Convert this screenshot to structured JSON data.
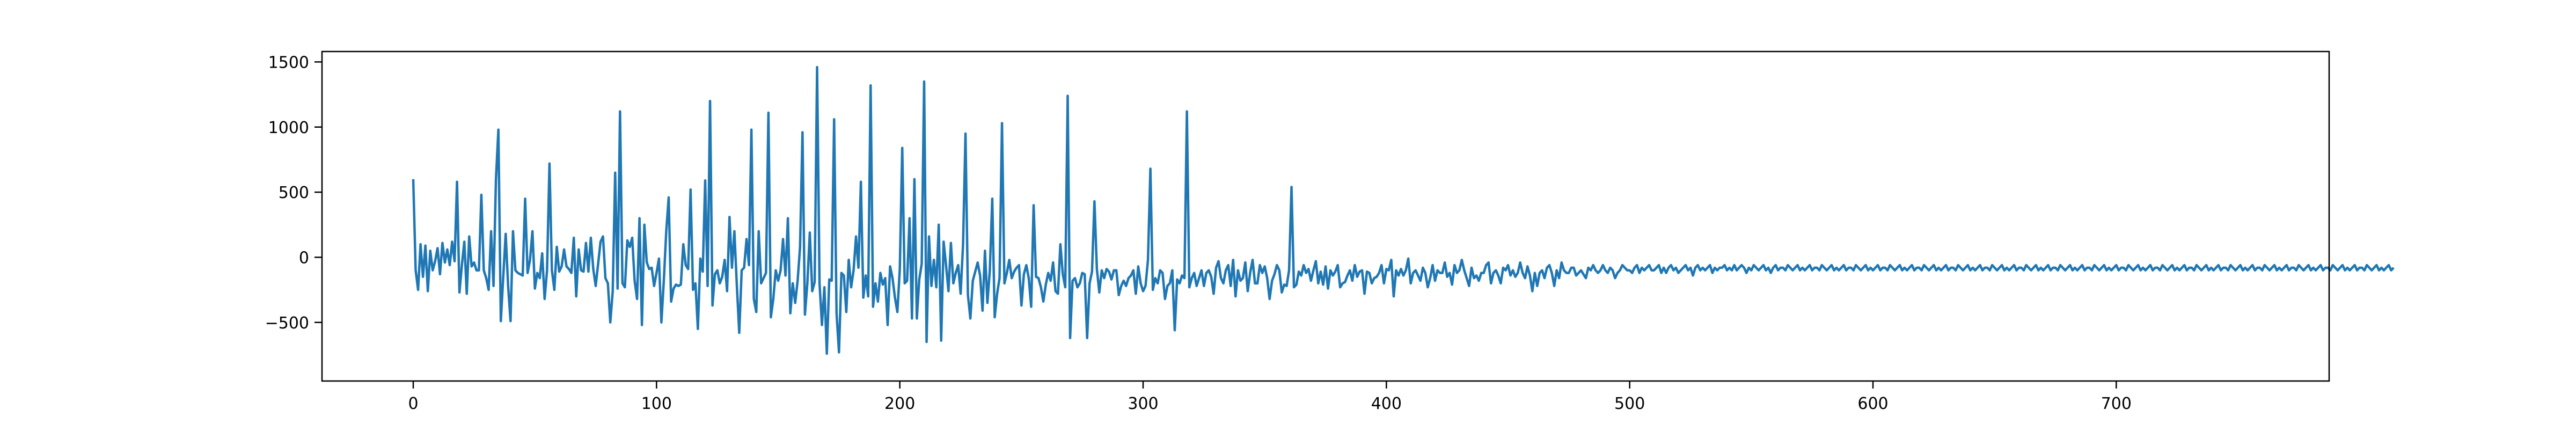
{
  "chart_data": {
    "type": "line",
    "title": "",
    "xlabel": "",
    "ylabel": "",
    "xlim": [
      -37.5,
      787.5
    ],
    "ylim": [
      -950,
      1580
    ],
    "grid": false,
    "legend": "none",
    "x_ticks": [
      {
        "value": 0,
        "label": "0"
      },
      {
        "value": 100,
        "label": "100"
      },
      {
        "value": 200,
        "label": "200"
      },
      {
        "value": 300,
        "label": "300"
      },
      {
        "value": 400,
        "label": "400"
      },
      {
        "value": 500,
        "label": "500"
      },
      {
        "value": 600,
        "label": "600"
      },
      {
        "value": 700,
        "label": "700"
      }
    ],
    "y_ticks": [
      {
        "value": -500,
        "label": "−500"
      },
      {
        "value": 0,
        "label": "0"
      },
      {
        "value": 500,
        "label": "500"
      },
      {
        "value": 1000,
        "label": "1000"
      },
      {
        "value": 1500,
        "label": "1500"
      }
    ],
    "series": [
      {
        "color": "#1f77b4",
        "x_start": 0,
        "x_step": 1,
        "y": [
          600,
          -100,
          -250,
          100,
          -150,
          90,
          -260,
          50,
          -100,
          -30,
          70,
          -130,
          110,
          -40,
          60,
          -60,
          120,
          -30,
          580,
          -270,
          -60,
          120,
          -280,
          160,
          -70,
          -40,
          -100,
          -100,
          480,
          -100,
          -160,
          -250,
          200,
          -220,
          600,
          980,
          -490,
          -150,
          180,
          -220,
          -490,
          200,
          -100,
          -120,
          -130,
          -140,
          450,
          -120,
          -20,
          200,
          -240,
          -120,
          -160,
          30,
          -320,
          -100,
          720,
          -100,
          -250,
          80,
          -110,
          -70,
          60,
          -70,
          -90,
          -120,
          150,
          -300,
          60,
          -100,
          -110,
          110,
          -110,
          150,
          -90,
          -220,
          -50,
          120,
          160,
          -160,
          -200,
          -500,
          -260,
          650,
          -240,
          1120,
          -200,
          -230,
          130,
          80,
          150,
          -180,
          -320,
          300,
          -520,
          250,
          -40,
          -90,
          -80,
          -220,
          -120,
          -10,
          -500,
          -180,
          200,
          460,
          -340,
          -240,
          -210,
          -220,
          -210,
          100,
          -60,
          -90,
          520,
          -250,
          -200,
          -550,
          -10,
          -110,
          590,
          -220,
          1200,
          -370,
          -130,
          -100,
          -200,
          -150,
          -20,
          -260,
          310,
          -80,
          200,
          -210,
          -580,
          -100,
          -80,
          140,
          -60,
          980,
          -320,
          -420,
          200,
          -200,
          -160,
          -120,
          1110,
          -460,
          -320,
          -100,
          -180,
          -100,
          140,
          -140,
          300,
          -430,
          -200,
          -350,
          -180,
          80,
          960,
          -440,
          -200,
          190,
          -260,
          -190,
          1460,
          -200,
          -520,
          -230,
          -740,
          -170,
          -180,
          1060,
          -430,
          -730,
          -120,
          -140,
          -420,
          -20,
          -230,
          -100,
          160,
          -80,
          580,
          -310,
          -140,
          -300,
          1320,
          -380,
          -200,
          -340,
          -120,
          -210,
          -160,
          -520,
          -70,
          -160,
          -310,
          -420,
          -90,
          840,
          -200,
          -180,
          300,
          -470,
          600,
          -470,
          -170,
          -50,
          1350,
          -650,
          160,
          -220,
          -20,
          -230,
          250,
          -640,
          120,
          -60,
          -260,
          110,
          -200,
          -120,
          -60,
          -280,
          100,
          950,
          -290,
          -470,
          -180,
          -110,
          -40,
          -140,
          -410,
          50,
          -350,
          -100,
          450,
          -460,
          -280,
          -160,
          1030,
          -200,
          -120,
          -20,
          -160,
          -110,
          -80,
          -60,
          -370,
          -130,
          -60,
          -160,
          -380,
          400,
          -150,
          -160,
          -230,
          -340,
          -210,
          -120,
          -180,
          -40,
          -260,
          -280,
          100,
          -130,
          -230,
          1240,
          -620,
          -180,
          -160,
          -230,
          -200,
          -120,
          -130,
          -620,
          -200,
          -110,
          430,
          -90,
          -270,
          -100,
          -160,
          -90,
          -110,
          -170,
          -100,
          -100,
          -290,
          -220,
          -180,
          -220,
          -160,
          -140,
          -100,
          -280,
          -70,
          -200,
          -260,
          -220,
          -20,
          680,
          -250,
          -160,
          -200,
          -100,
          -120,
          -320,
          -220,
          -200,
          -100,
          -560,
          -170,
          -200,
          -140,
          -160,
          1120,
          -230,
          -160,
          -120,
          -220,
          -160,
          -100,
          -220,
          -120,
          -100,
          -150,
          -280,
          -80,
          -30,
          -160,
          -200,
          -100,
          -60,
          -220,
          -20,
          -300,
          -100,
          -180,
          -160,
          -40,
          -260,
          -120,
          -20,
          -200,
          -200,
          -60,
          -120,
          -70,
          -160,
          -320,
          -180,
          -130,
          -60,
          -100,
          -270,
          -210,
          -220,
          -100,
          540,
          -230,
          -210,
          -110,
          -140,
          -60,
          -120,
          -90,
          -180,
          -100,
          -30,
          -200,
          -110,
          -210,
          -70,
          -240,
          -100,
          -140,
          -110,
          -60,
          -230,
          -200,
          -190,
          -140,
          -100,
          -180,
          -60,
          -150,
          -110,
          -100,
          -280,
          -110,
          -120,
          -200,
          -160,
          -150,
          -120,
          -60,
          -200,
          -90,
          -100,
          -20,
          -300,
          -100,
          -140,
          -90,
          -140,
          -100,
          -10,
          -200,
          -120,
          -100,
          -140,
          -180,
          -80,
          -120,
          -230,
          -160,
          -60,
          -180,
          -100,
          -120,
          -120,
          -40,
          -150,
          -120,
          -210,
          -60,
          -120,
          -100,
          -20,
          -100,
          -160,
          -220,
          -80,
          -160,
          -140,
          -180,
          -120,
          -120,
          -60,
          -40,
          -200,
          -120,
          -100,
          -140,
          -200,
          -80,
          -100,
          -60,
          -140,
          -100,
          -150,
          -120,
          -40,
          -120,
          -160,
          -70,
          -140,
          -260,
          -120,
          -220,
          -120,
          -100,
          -160,
          -80,
          -60,
          -120,
          -220,
          -100,
          -160,
          -40,
          -100,
          -120,
          -120,
          -80,
          -80,
          -140,
          -120,
          -100,
          -130,
          -160,
          -80,
          -100,
          -60,
          -100,
          -120,
          -100,
          -60,
          -100,
          -120,
          -80,
          -100,
          -160,
          -120,
          -100,
          -60,
          -80,
          -100,
          -100,
          -120,
          -80,
          -60,
          -120,
          -80,
          -100,
          -80,
          -60,
          -100,
          -100,
          -80,
          -60,
          -120,
          -80,
          -120,
          -80,
          -60,
          -100,
          -80,
          -120,
          -100,
          -80,
          -60,
          -100,
          -80,
          -140,
          -80,
          -60,
          -100,
          -80,
          -100,
          -80,
          -60,
          -120,
          -80,
          -100,
          -80,
          -80,
          -60,
          -100,
          -80,
          -100,
          -60,
          -100,
          -80,
          -60,
          -80,
          -120,
          -80,
          -100,
          -60,
          -80,
          -100,
          -80,
          -60,
          -100,
          -80,
          -120,
          -80,
          -60,
          -100,
          -80,
          -80,
          -100,
          -60,
          -80,
          -100,
          -80,
          -60,
          -100,
          -80,
          -100,
          -80,
          -60,
          -100,
          -80,
          -80,
          -100,
          -60,
          -80,
          -100,
          -80,
          -60,
          -100,
          -80,
          -100,
          -80,
          -60,
          -100,
          -80,
          -80,
          -100,
          -60,
          -80,
          -100,
          -80,
          -60,
          -100,
          -80,
          -100,
          -80,
          -60,
          -100,
          -80,
          -80,
          -100,
          -60,
          -80,
          -100,
          -80,
          -60,
          -100,
          -80,
          -100,
          -80,
          -60,
          -100,
          -80,
          -80,
          -100,
          -60,
          -80,
          -100,
          -80,
          -60,
          -100,
          -80,
          -100,
          -80,
          -60,
          -100,
          -80,
          -80,
          -100,
          -60,
          -80,
          -100,
          -80,
          -60,
          -100,
          -80,
          -100,
          -80,
          -60,
          -100,
          -80,
          -80,
          -100,
          -60,
          -80,
          -100,
          -80,
          -60,
          -100,
          -80,
          -100,
          -80,
          -60,
          -100,
          -80,
          -80,
          -100,
          -60,
          -80,
          -100,
          -80,
          -60,
          -100,
          -80,
          -100,
          -80,
          -60,
          -100,
          -80,
          -80,
          -100,
          -60,
          -80,
          -100,
          -80,
          -60,
          -100,
          -80,
          -100,
          -80,
          -60,
          -100,
          -80,
          -80,
          -100,
          -60,
          -80,
          -100,
          -80,
          -60,
          -100,
          -80,
          -100,
          -80,
          -60,
          -100,
          -80,
          -80,
          -100,
          -60,
          -80,
          -100,
          -80,
          -60,
          -100,
          -80,
          -100,
          -80,
          -60,
          -100,
          -80,
          -80,
          -100,
          -60,
          -80,
          -100,
          -80,
          -60,
          -100,
          -80,
          -100,
          -80,
          -60,
          -100,
          -80,
          -80,
          -100,
          -60,
          -80,
          -100,
          -80,
          -60,
          -100,
          -80,
          -100,
          -80,
          -60,
          -100,
          -80,
          -80,
          -100,
          -60,
          -80,
          -100,
          -80,
          -60,
          -100,
          -80,
          -100,
          -80,
          -60,
          -100,
          -80,
          -80,
          -100,
          -60,
          -80,
          -100,
          -80,
          -60,
          -100,
          -80,
          -100,
          -80,
          -60,
          -100,
          -80,
          -80,
          -100,
          -60,
          -80,
          -100,
          -80,
          -60,
          -100,
          -80,
          -100,
          -80,
          -60,
          -100,
          -80,
          -80,
          -100,
          -60,
          -80,
          -100,
          -80,
          -60,
          -100,
          -80,
          -100,
          -80,
          -60,
          -100,
          -80,
          -80,
          -100,
          -60,
          -80,
          -100,
          -80,
          -60,
          -100,
          -80,
          -100,
          -80,
          -60,
          -100,
          -80
        ]
      }
    ]
  }
}
